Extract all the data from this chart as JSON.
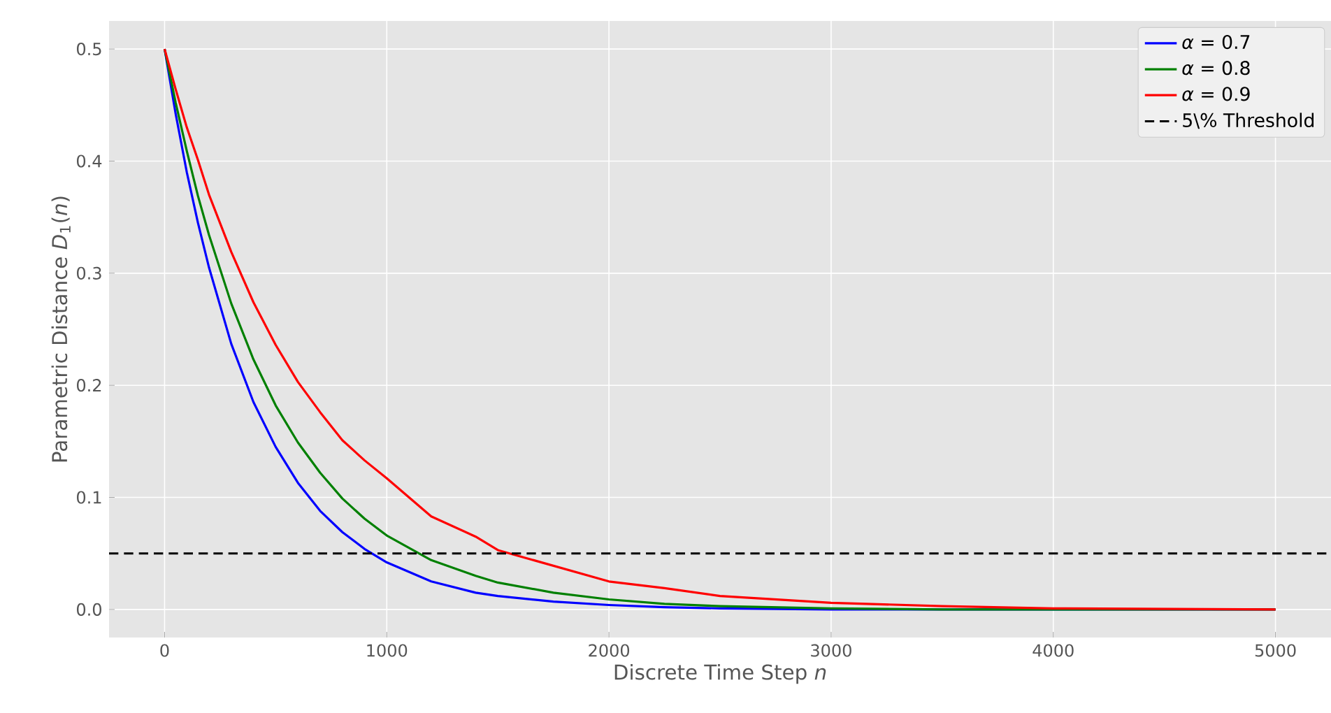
{
  "chart_data": {
    "type": "line",
    "xlabel": "Discrete Time Step *n*",
    "ylabel": "Parametric Distance *D*$_{1}$(*n*)",
    "x": [
      0,
      50,
      100,
      150,
      200,
      300,
      400,
      500,
      600,
      700,
      800,
      900,
      1000,
      1200,
      1400,
      1500,
      1750,
      2000,
      2250,
      2500,
      3000,
      3500,
      4000,
      5000
    ],
    "series": [
      {
        "name": "*α* = 0.7",
        "color": "#0000ff",
        "values": [
          0.5,
          0.442,
          0.39,
          0.345,
          0.305,
          0.237,
          0.185,
          0.145,
          0.113,
          0.088,
          0.069,
          0.054,
          0.042,
          0.025,
          0.015,
          0.012,
          0.007,
          0.004,
          0.002,
          0.001,
          0.0,
          0.0,
          0.0,
          0.0
        ]
      },
      {
        "name": "*α* = 0.8",
        "color": "#008000",
        "values": [
          0.5,
          0.452,
          0.409,
          0.369,
          0.334,
          0.273,
          0.223,
          0.182,
          0.149,
          0.122,
          0.099,
          0.081,
          0.066,
          0.044,
          0.03,
          0.024,
          0.015,
          0.009,
          0.005,
          0.003,
          0.001,
          0.0,
          0.0,
          0.0
        ]
      },
      {
        "name": "*α* = 0.9",
        "color": "#ff0000",
        "values": [
          0.5,
          0.464,
          0.43,
          0.401,
          0.37,
          0.319,
          0.274,
          0.236,
          0.203,
          0.176,
          0.151,
          0.133,
          0.117,
          0.083,
          0.065,
          0.053,
          0.039,
          0.025,
          0.019,
          0.012,
          0.006,
          0.003,
          0.001,
          0.0
        ]
      }
    ],
    "ref_lines": [
      {
        "axis": "y",
        "value": 0.05,
        "label": "5\\% Threshold",
        "color": "#000000",
        "line_style": "dashed"
      }
    ],
    "xlim": [
      -250,
      5250
    ],
    "ylim": [
      -0.025,
      0.525
    ],
    "xticks": [
      0,
      1000,
      2000,
      3000,
      4000,
      5000
    ],
    "yticks": [
      {
        "value": 0,
        "label": "0.0"
      },
      0.1,
      0.2,
      0.3,
      0.4,
      0.5
    ],
    "grid": true,
    "legend": "top right",
    "marker": "none",
    "line_style": "solid"
  }
}
